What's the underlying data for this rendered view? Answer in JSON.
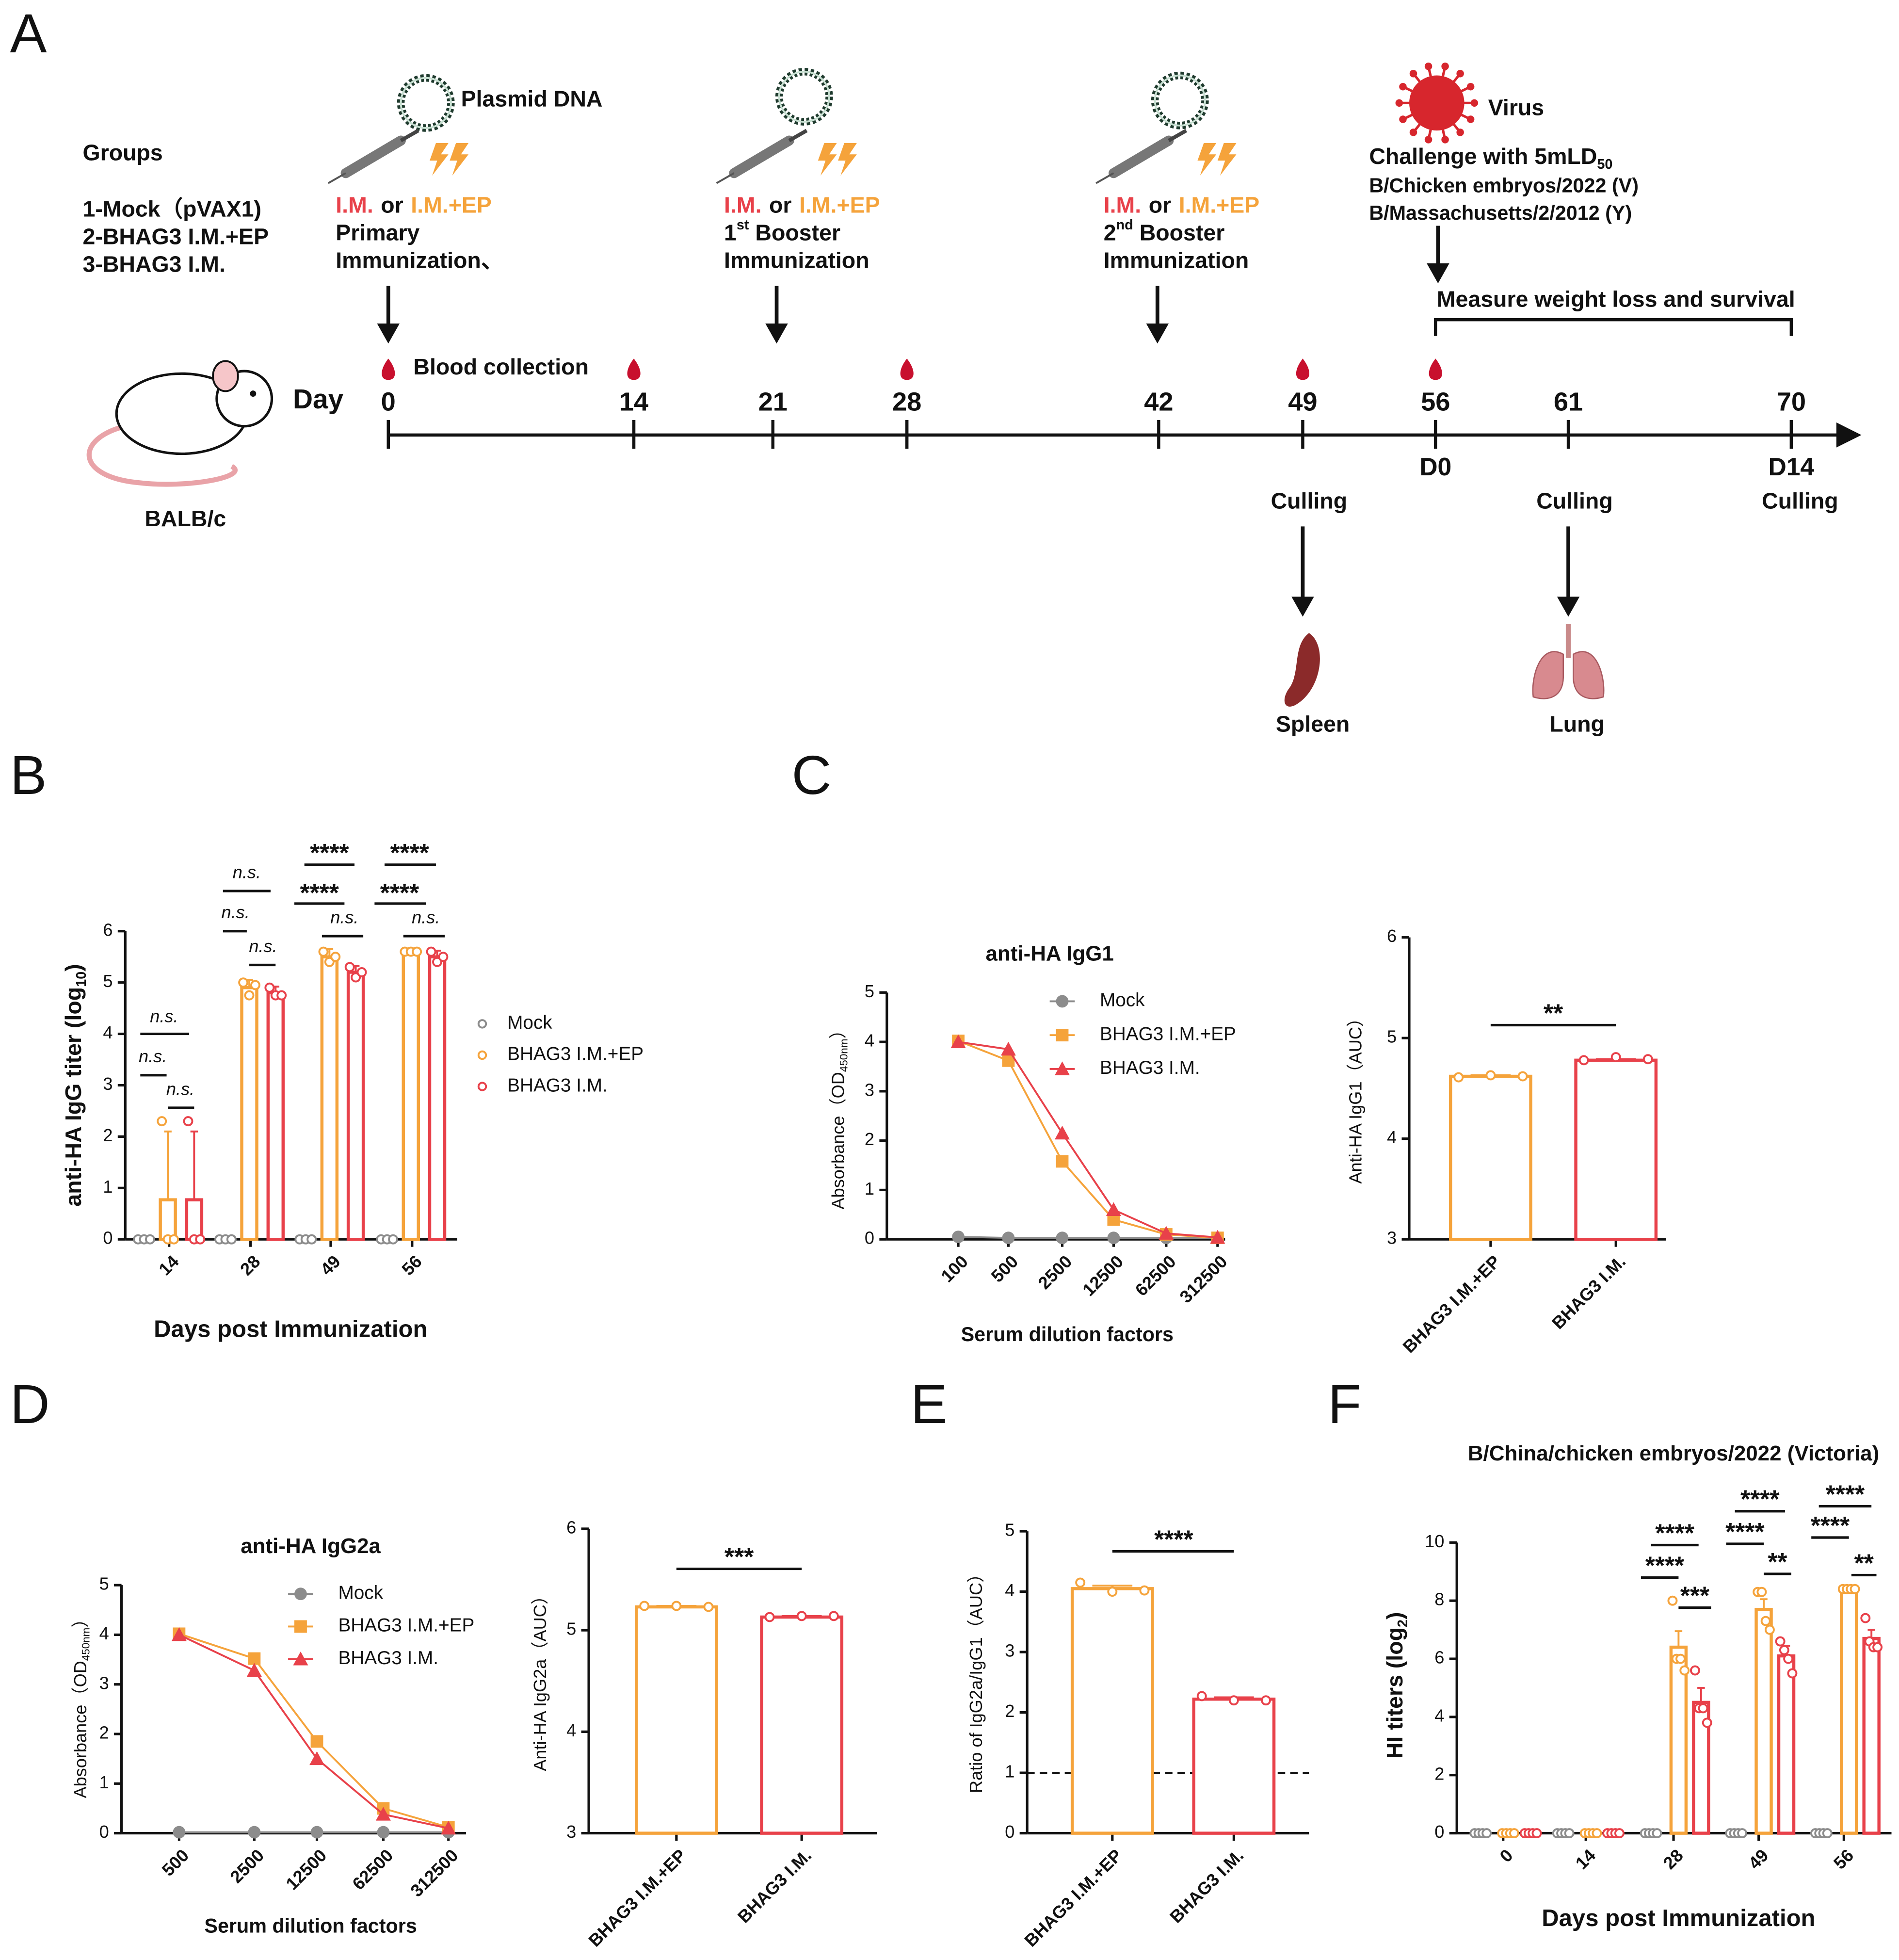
{
  "panel_labels": [
    "A",
    "B",
    "C",
    "D",
    "E",
    "F"
  ],
  "timeline": {
    "groups_title": "Groups",
    "groups": [
      {
        "label": "1-Mock（pVAX1)",
        "color": "#8c8c8c"
      },
      {
        "label": "2-BHAG3 I.M.+EP",
        "color": "#f5a33b"
      },
      {
        "label": "3-BHAG3 I.M.",
        "color": "#e8414a"
      }
    ],
    "colors": {
      "im": "#e8414a",
      "ep": "#f5a33b",
      "strain": "#d7262d"
    },
    "plasmid": "Plasmid DNA",
    "virus": "Virus",
    "immunizations": [
      {
        "route1": "I.M.",
        "or": "or",
        "route2": "I.M.+EP",
        "line1": [
          "Primary"
        ],
        "line2": "Immunization、"
      },
      {
        "route1": "I.M.",
        "or": "or",
        "route2": "I.M.+EP",
        "line1": [
          "1",
          "st",
          " Booster"
        ],
        "line2": "Immunization"
      },
      {
        "route1": "I.M.",
        "or": "or",
        "route2": "I.M.+EP",
        "line1": [
          "2",
          "nd",
          " Booster"
        ],
        "line2": "Immunization"
      }
    ],
    "challenge": [
      "Challenge with 5mLD",
      "50"
    ],
    "strains": [
      "B/Chicken embryos/2022 (V)",
      "B/Massachusetts/2/2012 (Y)"
    ],
    "measure": "Measure weight loss and survival",
    "blood": "Blood collection",
    "day_label": "Day",
    "days": [
      0,
      14,
      21,
      28,
      42,
      49,
      56,
      61,
      70
    ],
    "day_marks": [
      "D0",
      "D14"
    ],
    "culling": "Culling",
    "spleen": "Spleen",
    "lung": "Lung",
    "mouse": "BALB/c"
  },
  "chart_data": [
    {
      "type": "bar",
      "categories": [
        "14",
        "28",
        "49",
        "56"
      ],
      "ylim": [
        0,
        6
      ],
      "yticks": [
        0,
        1,
        2,
        3,
        4,
        5,
        6
      ],
      "ylabel": [
        "anti-HA IgG titer (log",
        "10",
        ")"
      ],
      "xlabel": "Days post Immunization",
      "series": [
        {
          "name": "Mock",
          "color": "#8c8c8c",
          "values": [
            0,
            0,
            0,
            0
          ],
          "points": [
            [
              0,
              0,
              0
            ],
            [
              0,
              0,
              0
            ],
            [
              0,
              0,
              0
            ],
            [
              0,
              0,
              0
            ]
          ]
        },
        {
          "name": "BHAG3 I.M.+EP",
          "color": "#f5a33b",
          "values": [
            0.77,
            4.9,
            5.5,
            5.6
          ],
          "errors": [
            1.33,
            0.15,
            0.15,
            0.02
          ],
          "points": [
            [
              2.3,
              0,
              0
            ],
            [
              5.0,
              4.75,
              4.95
            ],
            [
              5.6,
              5.4,
              5.5
            ],
            [
              5.6,
              5.6,
              5.6
            ]
          ]
        },
        {
          "name": "BHAG3 I.M.",
          "color": "#e8414a",
          "values": [
            0.77,
            4.8,
            5.2,
            5.5
          ],
          "errors": [
            1.33,
            0.12,
            0.12,
            0.12
          ],
          "points": [
            [
              2.3,
              0,
              0
            ],
            [
              4.9,
              4.75,
              4.75
            ],
            [
              5.3,
              5.1,
              5.2
            ],
            [
              5.6,
              5.4,
              5.5
            ]
          ]
        }
      ],
      "annotations": [
        "n.s.",
        "n.s.",
        "n.s.",
        "n.s.",
        "n.s.",
        "n.s.",
        "****",
        "****",
        "n.s.",
        "****",
        "****",
        "n.s."
      ]
    },
    {
      "type": "line",
      "title": "anti-HA IgG1",
      "categories": [
        "100",
        "500",
        "2500",
        "12500",
        "62500",
        "312500"
      ],
      "ylim": [
        0,
        5
      ],
      "yticks": [
        0,
        1,
        2,
        3,
        4,
        5
      ],
      "ylabel": [
        "Absorbance（OD",
        "450nm",
        "）"
      ],
      "xlabel": "Serum dilution factors",
      "series": [
        {
          "name": "Mock",
          "color": "#8c8c8c",
          "marker": "circle",
          "values": [
            0.05,
            0.03,
            0.03,
            0.03,
            0.03,
            0.03
          ]
        },
        {
          "name": "BHAG3 I.M.+EP",
          "color": "#f5a33b",
          "marker": "square",
          "values": [
            4.02,
            3.62,
            1.58,
            0.4,
            0.1,
            0.03
          ]
        },
        {
          "name": "BHAG3 I.M.",
          "color": "#e8414a",
          "marker": "triangle",
          "values": [
            4.0,
            3.85,
            2.15,
            0.6,
            0.12,
            0.04
          ]
        }
      ]
    },
    {
      "type": "bar",
      "categories": [
        "BHAG3 I.M.+EP",
        "BHAG3 I.M."
      ],
      "values": [
        4.62,
        4.78
      ],
      "errors": [
        0.01,
        0.01
      ],
      "colors": [
        "#f5a33b",
        "#e8414a"
      ],
      "points": [
        [
          4.61,
          4.63,
          4.62
        ],
        [
          4.78,
          4.81,
          4.79
        ]
      ],
      "ylim": [
        3,
        6
      ],
      "yticks": [
        3,
        4,
        5,
        6
      ],
      "ylabel": [
        "Anti-HA IgG1（AUC）"
      ],
      "annotations": [
        "**"
      ]
    },
    {
      "type": "line",
      "title": "anti-HA IgG2a",
      "categories": [
        "500",
        "2500",
        "12500",
        "62500",
        "312500"
      ],
      "ylim": [
        0,
        5
      ],
      "yticks": [
        0,
        1,
        2,
        3,
        4,
        5
      ],
      "ylabel": [
        "Absorbance（OD",
        "450nm",
        "）"
      ],
      "xlabel": "Serum dilution factors",
      "series": [
        {
          "name": "Mock",
          "color": "#8c8c8c",
          "marker": "circle",
          "values": [
            0.02,
            0.02,
            0.02,
            0.02,
            0.02
          ]
        },
        {
          "name": "BHAG3 I.M.+EP",
          "color": "#f5a33b",
          "marker": "square",
          "values": [
            4.02,
            3.52,
            1.85,
            0.5,
            0.12
          ]
        },
        {
          "name": "BHAG3 I.M.",
          "color": "#e8414a",
          "marker": "triangle",
          "values": [
            4.0,
            3.28,
            1.5,
            0.38,
            0.1
          ]
        }
      ]
    },
    {
      "type": "bar",
      "categories": [
        "BHAG3 I.M.+EP",
        "BHAG3 I.M."
      ],
      "values": [
        5.23,
        5.13
      ],
      "errors": [
        0.01,
        0.01
      ],
      "colors": [
        "#f5a33b",
        "#e8414a"
      ],
      "points": [
        [
          5.24,
          5.24,
          5.23
        ],
        [
          5.13,
          5.14,
          5.14
        ]
      ],
      "ylim": [
        3,
        6
      ],
      "yticks": [
        3,
        4,
        5,
        6
      ],
      "ylabel": [
        "Anti-HA IgG2a（AUC）"
      ],
      "annotations": [
        "***"
      ]
    },
    {
      "type": "bar",
      "categories": [
        "BHAG3 I.M.+EP",
        "BHAG3 I.M."
      ],
      "values": [
        4.05,
        2.22
      ],
      "errors": [
        0.05,
        0.03
      ],
      "colors": [
        "#f5a33b",
        "#e8414a"
      ],
      "points": [
        [
          4.15,
          4.0,
          4.02
        ],
        [
          2.27,
          2.2,
          2.2
        ]
      ],
      "ylim": [
        0,
        5
      ],
      "yticks": [
        0,
        1,
        2,
        3,
        4,
        5
      ],
      "ylabel": [
        "Ratio of IgG2a/IgG1（AUC）"
      ],
      "reference_line": 1,
      "annotations": [
        "****"
      ]
    },
    {
      "type": "bar",
      "title": "B/China/chicken embryos/2022 (Victoria)",
      "categories": [
        "0",
        "14",
        "28",
        "49",
        "56"
      ],
      "ylim": [
        0,
        10
      ],
      "yticks": [
        0,
        2,
        4,
        6,
        8,
        10
      ],
      "ylabel": [
        "HI titers (log",
        "2",
        ")"
      ],
      "xlabel": "Days post Immunization",
      "series": [
        {
          "name": "Mock",
          "color": "#8c8c8c",
          "values": [
            0,
            0,
            0,
            0,
            0
          ],
          "points": [
            [
              0,
              0,
              0,
              0
            ],
            [
              0,
              0,
              0,
              0
            ],
            [
              0,
              0,
              0,
              0
            ],
            [
              0,
              0,
              0,
              0
            ],
            [
              0,
              0,
              0,
              0
            ]
          ]
        },
        {
          "name": "BHAG3 I.M.+EP",
          "color": "#f5a33b",
          "values": [
            0,
            0,
            6.4,
            7.7,
            8.4
          ],
          "errors": [
            0,
            0,
            0.55,
            0.35,
            0.02
          ],
          "points": [
            [
              0,
              0,
              0,
              0
            ],
            [
              0,
              0,
              0,
              0
            ],
            [
              8.0,
              6.0,
              6.0,
              5.6
            ],
            [
              8.3,
              8.3,
              7.3,
              7.0
            ],
            [
              8.4,
              8.4,
              8.4,
              8.4
            ]
          ]
        },
        {
          "name": "BHAG3 I.M.",
          "color": "#e8414a",
          "values": [
            0,
            0,
            4.5,
            6.1,
            6.7
          ],
          "errors": [
            0,
            0,
            0.5,
            0.35,
            0.3
          ],
          "points": [
            [
              0,
              0,
              0,
              0
            ],
            [
              0,
              0,
              0,
              0
            ],
            [
              5.6,
              4.3,
              4.3,
              3.8
            ],
            [
              6.6,
              6.3,
              6.0,
              5.5
            ],
            [
              7.4,
              6.6,
              6.4,
              6.4
            ]
          ]
        }
      ],
      "annotations": [
        "****",
        "****",
        "***",
        "****",
        "****",
        "**",
        "****",
        "****",
        "**"
      ]
    }
  ]
}
